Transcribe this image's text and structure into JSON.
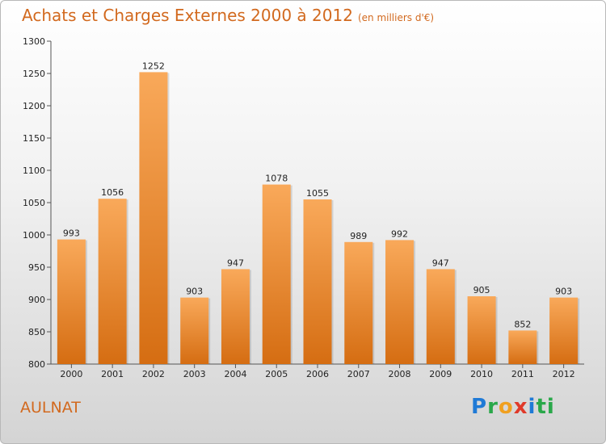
{
  "header": {
    "title": "Achats et Charges Externes 2000 à 2012",
    "subtitle": "(en milliers d'€)"
  },
  "commune": "AULNAT",
  "logo": {
    "letters": [
      "P",
      "r",
      "o",
      "x",
      "i",
      "t",
      "i"
    ]
  },
  "colors": {
    "bar_top": "#f9a95a",
    "bar_bottom": "#d56d12",
    "title": "#d2691e"
  },
  "chart_data": {
    "type": "bar",
    "title": "Achats et Charges Externes 2000 à 2012",
    "subtitle": "(en milliers d'€)",
    "categories": [
      "2000",
      "2001",
      "2002",
      "2003",
      "2004",
      "2005",
      "2006",
      "2007",
      "2008",
      "2009",
      "2010",
      "2011",
      "2012"
    ],
    "values": [
      993,
      1056,
      1252,
      903,
      947,
      1078,
      1055,
      989,
      992,
      947,
      905,
      852,
      903
    ],
    "ylim": [
      800,
      1300
    ],
    "yticks": [
      800,
      850,
      900,
      950,
      1000,
      1050,
      1100,
      1150,
      1200,
      1250,
      1300
    ],
    "grid": false,
    "xlabel": "",
    "ylabel": ""
  }
}
